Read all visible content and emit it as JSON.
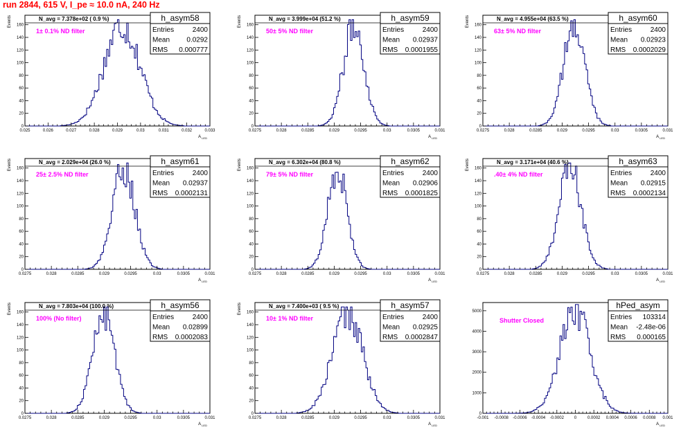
{
  "page": {
    "title": "run 2844,   615 V, I_pe ≈ 10.0 nA, 240 Hz"
  },
  "colors": {
    "title": "#ff0000",
    "histogram": "#000080",
    "annotation": "#ff00ff",
    "frame": "#000000"
  },
  "chart_data": [
    {
      "type": "histogram",
      "name": "h_asym58",
      "xlabel": "A_{LED}",
      "ylabel": "Events",
      "xlim": [
        0.025,
        0.033
      ],
      "ylim": [
        0,
        175
      ],
      "xticks": [
        0.025,
        0.026,
        0.027,
        0.028,
        0.029,
        0.03,
        0.031,
        0.032,
        0.033
      ],
      "xtick_labels": [
        "0.025",
        "0.026",
        "0.027",
        "0.028",
        "0.029",
        "0.03",
        "0.031",
        "0.032",
        "0.033"
      ],
      "yticks": [
        0,
        20,
        40,
        60,
        80,
        100,
        120,
        140,
        160
      ],
      "ytick_labels": [
        "0",
        "20",
        "40",
        "60",
        "80",
        "100",
        "120",
        "140",
        "160"
      ],
      "title": "h_asym58",
      "stats": {
        "Entries": "2400",
        "Mean": "0.0292",
        "RMS": "0.000777"
      },
      "navg": "N_avg = 7.378e+02 ( 0.9 %)",
      "annotation": "1± 0.1% ND filter",
      "hist": {
        "mean": 0.0292,
        "rms": 0.000777,
        "peak": 160
      }
    },
    {
      "type": "histogram",
      "name": "h_asym59",
      "xlabel": "A_{LED}",
      "ylabel": "Events",
      "xlim": [
        0.0275,
        0.031
      ],
      "ylim": [
        0,
        175
      ],
      "xticks": [
        0.0275,
        0.028,
        0.0285,
        0.029,
        0.0295,
        0.03,
        0.0305,
        0.031
      ],
      "xtick_labels": [
        "0.0275",
        "0.028",
        "0.0285",
        "0.029",
        "0.0295",
        "0.03",
        "0.0305",
        "0.031"
      ],
      "yticks": [
        0,
        20,
        40,
        60,
        80,
        100,
        120,
        140,
        160
      ],
      "ytick_labels": [
        "0",
        "20",
        "40",
        "60",
        "80",
        "100",
        "120",
        "140",
        "160"
      ],
      "title": "h_asym59",
      "stats": {
        "Entries": "2400",
        "Mean": "0.02937",
        "RMS": "0.0001955"
      },
      "navg": "N_avg = 3.999e+04 (51.2 %)",
      "annotation": "50± 5% ND filter",
      "hist": {
        "mean": 0.02937,
        "rms": 0.0001955,
        "peak": 160
      }
    },
    {
      "type": "histogram",
      "name": "h_asym60",
      "xlabel": "A_{LED}",
      "ylabel": "Events",
      "xlim": [
        0.0275,
        0.031
      ],
      "ylim": [
        0,
        175
      ],
      "xticks": [
        0.0275,
        0.028,
        0.0285,
        0.029,
        0.0295,
        0.03,
        0.0305,
        0.031
      ],
      "xtick_labels": [
        "0.0275",
        "0.028",
        "0.0285",
        "0.029",
        "0.0295",
        "0.03",
        "0.0305",
        "0.031"
      ],
      "yticks": [
        0,
        20,
        40,
        60,
        80,
        100,
        120,
        140,
        160
      ],
      "ytick_labels": [
        "0",
        "20",
        "40",
        "60",
        "80",
        "100",
        "120",
        "140",
        "160"
      ],
      "title": "h_asym60",
      "stats": {
        "Entries": "2400",
        "Mean": "0.02923",
        "RMS": "0.0002029"
      },
      "navg": "N_avg = 4.955e+04 (63.5 %)",
      "annotation": "63± 5% ND filter",
      "hist": {
        "mean": 0.02923,
        "rms": 0.0002029,
        "peak": 160
      }
    },
    {
      "type": "histogram",
      "name": "h_asym61",
      "xlabel": "A_{LED}",
      "ylabel": "Events",
      "xlim": [
        0.0275,
        0.031
      ],
      "ylim": [
        0,
        175
      ],
      "xticks": [
        0.0275,
        0.028,
        0.0285,
        0.029,
        0.0295,
        0.03,
        0.0305,
        0.031
      ],
      "xtick_labels": [
        "0.0275",
        "0.028",
        "0.0285",
        "0.029",
        "0.0295",
        "0.03",
        "0.0305",
        "0.031"
      ],
      "yticks": [
        0,
        20,
        40,
        60,
        80,
        100,
        120,
        140,
        160
      ],
      "ytick_labels": [
        "0",
        "20",
        "40",
        "60",
        "80",
        "100",
        "120",
        "140",
        "160"
      ],
      "title": "h_asym61",
      "stats": {
        "Entries": "2400",
        "Mean": "0.02937",
        "RMS": "0.0002131"
      },
      "navg": "N_avg = 2.029e+04 (26.0 %)",
      "annotation": "25± 2.5% ND filter",
      "hist": {
        "mean": 0.02937,
        "rms": 0.0002131,
        "peak": 160
      }
    },
    {
      "type": "histogram",
      "name": "h_asym62",
      "xlabel": "A_{LED}",
      "ylabel": "Events",
      "xlim": [
        0.0275,
        0.031
      ],
      "ylim": [
        0,
        175
      ],
      "xticks": [
        0.0275,
        0.028,
        0.0285,
        0.029,
        0.0295,
        0.03,
        0.0305,
        0.031
      ],
      "xtick_labels": [
        "0.0275",
        "0.028",
        "0.0285",
        "0.029",
        "0.0295",
        "0.03",
        "0.0305",
        "0.031"
      ],
      "yticks": [
        0,
        20,
        40,
        60,
        80,
        100,
        120,
        140,
        160
      ],
      "ytick_labels": [
        "0",
        "20",
        "40",
        "60",
        "80",
        "100",
        "120",
        "140",
        "160"
      ],
      "title": "h_asym62",
      "stats": {
        "Entries": "2400",
        "Mean": "0.02906",
        "RMS": "0.0001825"
      },
      "navg": "N_avg = 6.302e+04 (80.8 %)",
      "annotation": "79± 5% ND filter",
      "hist": {
        "mean": 0.02906,
        "rms": 0.0001825,
        "peak": 160
      }
    },
    {
      "type": "histogram",
      "name": "h_asym63",
      "xlabel": "A_{LED}",
      "ylabel": "Events",
      "xlim": [
        0.0275,
        0.031
      ],
      "ylim": [
        0,
        175
      ],
      "xticks": [
        0.0275,
        0.028,
        0.0285,
        0.029,
        0.0295,
        0.03,
        0.0305,
        0.031
      ],
      "xtick_labels": [
        "0.0275",
        "0.028",
        "0.0285",
        "0.029",
        "0.0295",
        "0.03",
        "0.0305",
        "0.031"
      ],
      "yticks": [
        0,
        20,
        40,
        60,
        80,
        100,
        120,
        140,
        160
      ],
      "ytick_labels": [
        "0",
        "20",
        "40",
        "60",
        "80",
        "100",
        "120",
        "140",
        "160"
      ],
      "title": "h_asym63",
      "stats": {
        "Entries": "2400",
        "Mean": "0.02915",
        "RMS": "0.0002134"
      },
      "navg": "N_avg = 3.171e+04 (40.6 %)",
      "annotation": ".40± 4% ND filter",
      "hist": {
        "mean": 0.02915,
        "rms": 0.0002134,
        "peak": 160
      }
    },
    {
      "type": "histogram",
      "name": "h_asym56",
      "xlabel": "A_{LED}",
      "ylabel": "Events",
      "xlim": [
        0.0275,
        0.031
      ],
      "ylim": [
        0,
        175
      ],
      "xticks": [
        0.0275,
        0.028,
        0.0285,
        0.029,
        0.0295,
        0.03,
        0.0305,
        0.031
      ],
      "xtick_labels": [
        "0.0275",
        "0.028",
        "0.0285",
        "0.029",
        "0.0295",
        "0.03",
        "0.0305",
        "0.031"
      ],
      "yticks": [
        0,
        20,
        40,
        60,
        80,
        100,
        120,
        140,
        160
      ],
      "ytick_labels": [
        "0",
        "20",
        "40",
        "60",
        "80",
        "100",
        "120",
        "140",
        "160"
      ],
      "title": "h_asym56",
      "stats": {
        "Entries": "2400",
        "Mean": "0.02899",
        "RMS": "0.0002083"
      },
      "navg": "N_avg = 7.803e+04 (100.0 %)",
      "annotation": "100% (No filter)",
      "hist": {
        "mean": 0.02899,
        "rms": 0.0002083,
        "peak": 160
      }
    },
    {
      "type": "histogram",
      "name": "h_asym57",
      "xlabel": "A_{LED}",
      "ylabel": "Events",
      "xlim": [
        0.0275,
        0.031
      ],
      "ylim": [
        0,
        175
      ],
      "xticks": [
        0.0275,
        0.028,
        0.0285,
        0.029,
        0.0295,
        0.03,
        0.0305,
        0.031
      ],
      "xtick_labels": [
        "0.0275",
        "0.028",
        "0.0285",
        "0.029",
        "0.0295",
        "0.03",
        "0.0305",
        "0.031"
      ],
      "yticks": [
        0,
        20,
        40,
        60,
        80,
        100,
        120,
        140,
        160
      ],
      "ytick_labels": [
        "0",
        "20",
        "40",
        "60",
        "80",
        "100",
        "120",
        "140",
        "160"
      ],
      "title": "h_asym57",
      "stats": {
        "Entries": "2400",
        "Mean": "0.02925",
        "RMS": "0.0002847"
      },
      "navg": "N_avg = 7.400e+03 ( 9.5 %)",
      "annotation": "10± 1% ND filter",
      "hist": {
        "mean": 0.02925,
        "rms": 0.0002847,
        "peak": 160
      }
    },
    {
      "type": "histogram",
      "name": "hPed_asym",
      "xlabel": "A_{LED}",
      "ylabel": "",
      "xlim": [
        -0.001,
        0.001
      ],
      "ylim": [
        0,
        5400
      ],
      "xticks": [
        -0.001,
        -0.0008,
        -0.0006,
        -0.0004,
        -0.0002,
        0,
        0.0002,
        0.0004,
        0.0006,
        0.0008,
        0.001
      ],
      "xtick_labels": [
        "-0.001",
        "-0.0008",
        "-0.0006",
        "-0.0004",
        "-0.0002",
        "0",
        "0.0002",
        "0.0004",
        "0.0006",
        "0.0008",
        "0.001"
      ],
      "yticks": [
        0,
        1000,
        2000,
        3000,
        4000,
        5000
      ],
      "ytick_labels": [
        "0",
        "1000",
        "2000",
        "3000",
        "4000",
        "5000"
      ],
      "title": "hPed_asym",
      "stats": {
        "Entries": "103314",
        "Mean": "-2.48e-06",
        "RMS": "0.000165"
      },
      "navg": "",
      "annotation": "Shutter Closed",
      "hist": {
        "mean": -2.48e-06,
        "rms": 0.000165,
        "peak": 5050
      }
    }
  ]
}
